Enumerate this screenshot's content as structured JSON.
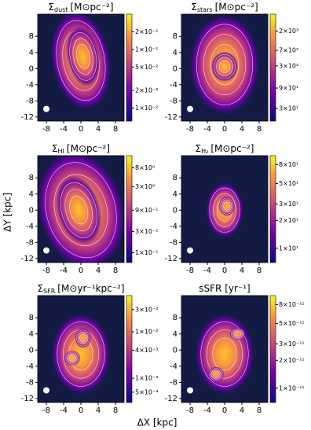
{
  "figure": {
    "xlabel": "ΔX [kpc]",
    "ylabel": "ΔY [kpc]"
  },
  "chart_data": [
    {
      "type": "map",
      "title": "Σ",
      "title_sub": "dust",
      "title_unit": "[M⊙pc⁻²]",
      "log_colorbar": true,
      "xlim": [
        -10,
        10
      ],
      "ylim": [
        -13,
        13.5
      ],
      "xticks": [
        -8,
        -4,
        0,
        4,
        8
      ],
      "yticks": [
        -12,
        -8,
        -4,
        0,
        4,
        8
      ],
      "clim": [
        0.006,
        0.4
      ],
      "cticks": [
        {
          "value": 0.2,
          "label": "2×10⁻¹"
        },
        {
          "value": 0.1,
          "label": "1×10⁻¹"
        },
        {
          "value": 0.05,
          "label": "5×10⁻²"
        },
        {
          "value": 0.02,
          "label": "2×10⁻²"
        },
        {
          "value": 0.01,
          "label": "1×10⁻²"
        }
      ]
    },
    {
      "type": "map",
      "title": "Σ",
      "title_sub": "stars",
      "title_unit": "[M⊙pc⁻²]",
      "log_colorbar": true,
      "xlim": [
        -10,
        10
      ],
      "ylim": [
        -13,
        13.5
      ],
      "xticks": [
        -8,
        -4,
        0,
        4,
        8
      ],
      "yticks": [
        -12,
        -8,
        -4,
        0,
        4,
        8
      ],
      "clim": [
        15,
        5000
      ],
      "cticks": [
        {
          "value": 2000,
          "label": "2×10³"
        },
        {
          "value": 700,
          "label": "7×10²"
        },
        {
          "value": 300,
          "label": "3×10²"
        },
        {
          "value": 90,
          "label": "9×10¹"
        },
        {
          "value": 30,
          "label": "3×10¹"
        }
      ]
    },
    {
      "type": "map",
      "title": "Σ",
      "title_sub": "HI",
      "title_unit": "[M⊙pc⁻²]",
      "log_colorbar": true,
      "xlim": [
        -10,
        10
      ],
      "ylim": [
        -13,
        13.5
      ],
      "xticks": [
        -8,
        -4,
        0,
        4,
        8
      ],
      "yticks": [
        -12,
        -8,
        -4,
        0,
        4,
        8
      ],
      "clim": [
        0.06,
        15
      ],
      "cticks": [
        {
          "value": 8,
          "label": "8×10⁰"
        },
        {
          "value": 3,
          "label": "3×10⁰"
        },
        {
          "value": 0.9,
          "label": "9×10⁻¹"
        },
        {
          "value": 0.3,
          "label": "3×10⁻¹"
        },
        {
          "value": 0.1,
          "label": "1×10⁻¹"
        }
      ]
    },
    {
      "type": "map",
      "title": "Σ",
      "title_sub": "H₂",
      "title_unit": "[M⊙pc⁻²]",
      "log_colorbar": true,
      "xlim": [
        -10,
        10
      ],
      "ylim": [
        -13,
        13.5
      ],
      "xticks": [
        -8,
        -4,
        0,
        4,
        8
      ],
      "yticks": [
        -12,
        -8,
        -4,
        0,
        4,
        8
      ],
      "clim": [
        7,
        100
      ],
      "cticks": [
        {
          "value": 80,
          "label": "8×10¹"
        },
        {
          "value": 50,
          "label": "5×10¹"
        },
        {
          "value": 30,
          "label": "3×10¹"
        },
        {
          "value": 20,
          "label": "2×10¹"
        },
        {
          "value": 10,
          "label": "1×10¹"
        }
      ]
    },
    {
      "type": "map",
      "title": "Σ",
      "title_sub": "SFR",
      "title_unit": "[M⊙yr⁻¹kpc⁻²]",
      "log_colorbar": true,
      "xlim": [
        -10,
        10
      ],
      "ylim": [
        -13,
        13.5
      ],
      "xticks": [
        -8,
        -4,
        0,
        4,
        8
      ],
      "yticks": [
        -12,
        -8,
        -4,
        0,
        4,
        8
      ],
      "clim": [
        0.0003,
        0.06
      ],
      "cticks": [
        {
          "value": 0.03,
          "label": "3×10⁻²"
        },
        {
          "value": 0.01,
          "label": "1×10⁻²"
        },
        {
          "value": 0.004,
          "label": "4×10⁻³"
        },
        {
          "value": 0.001,
          "label": "1×10⁻³"
        },
        {
          "value": 0.0005,
          "label": "5×10⁻⁴"
        }
      ]
    },
    {
      "type": "map",
      "title": "sSFR [yr⁻¹]",
      "log_colorbar": true,
      "xlim": [
        -10,
        10
      ],
      "ylim": [
        -13,
        13.5
      ],
      "xticks": [
        -8,
        -4,
        0,
        4,
        8
      ],
      "yticks": [
        -12,
        -8,
        -4,
        0,
        4,
        8
      ],
      "clim": [
        7e-12,
        1e-10
      ],
      "cticks": [
        {
          "value": 8e-11,
          "label": "8×10⁻¹¹"
        },
        {
          "value": 5e-11,
          "label": "5×10⁻¹¹"
        },
        {
          "value": 3e-11,
          "label": "3×10⁻¹¹"
        },
        {
          "value": 2e-11,
          "label": "2×10⁻¹¹"
        },
        {
          "value": 1e-11,
          "label": "1×10⁻¹¹"
        }
      ]
    }
  ]
}
